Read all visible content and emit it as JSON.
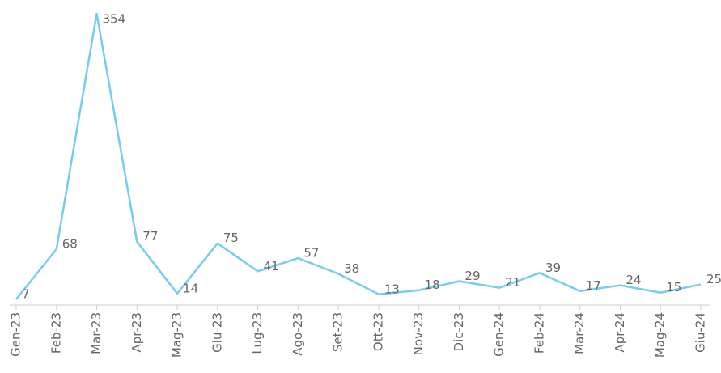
{
  "chart_data": {
    "type": "line",
    "categories": [
      "Gen-23",
      "Feb-23",
      "Mar-23",
      "Apr-23",
      "Mag-23",
      "Giu-23",
      "Lug-23",
      "Ago-23",
      "Set-23",
      "Ott-23",
      "Nov-23",
      "Dic-23",
      "Gen-24",
      "Feb-24",
      "Mar-24",
      "Apr-24",
      "Mag-24",
      "Giu-24"
    ],
    "values": [
      7,
      68,
      354,
      77,
      14,
      75,
      41,
      57,
      38,
      13,
      18,
      29,
      21,
      39,
      17,
      24,
      15,
      25
    ],
    "color": "#74cdee",
    "ylim": [
      0,
      354
    ]
  }
}
